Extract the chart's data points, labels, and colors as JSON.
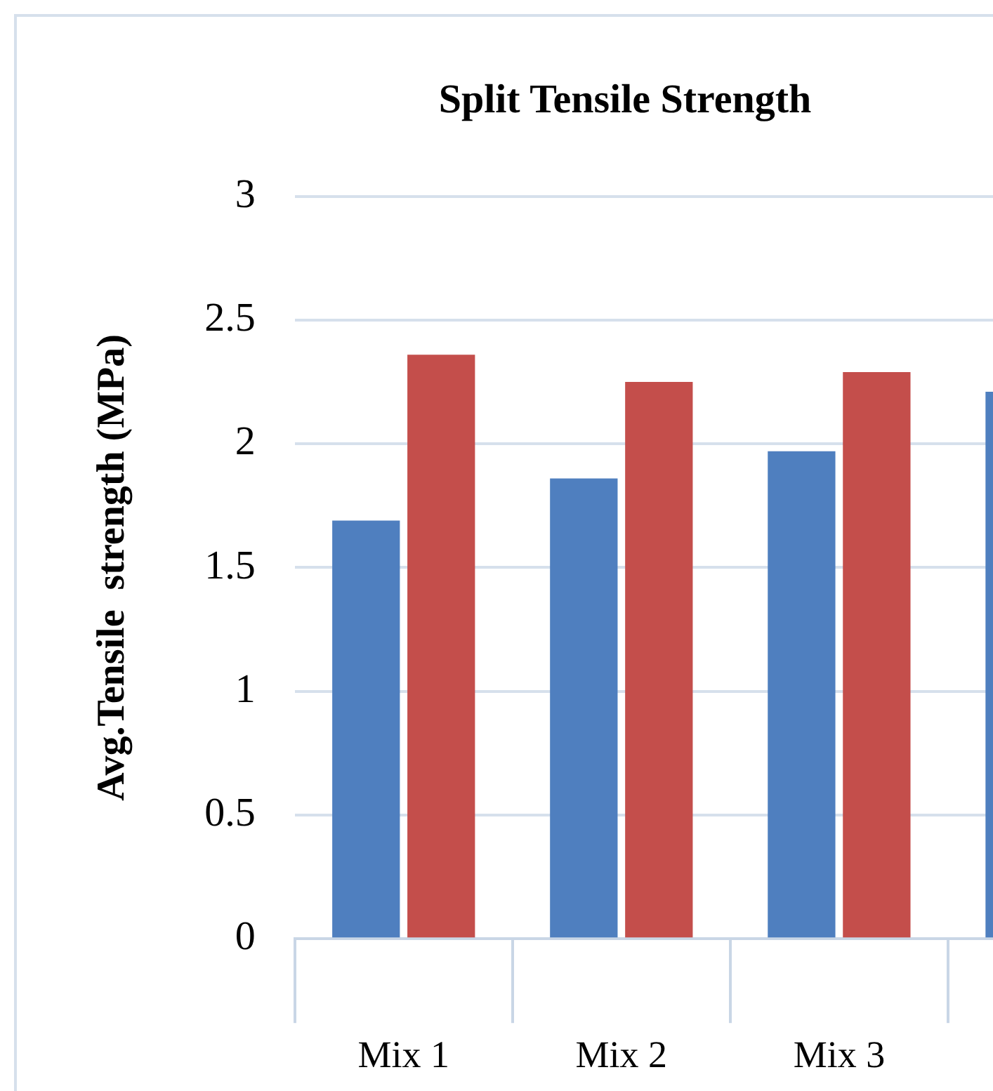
{
  "chart_data": {
    "type": "bar",
    "title": "Split Tensile Strength",
    "ylabel": "Avg.Tensile  strength (MPa)",
    "categories": [
      "Mix 1",
      "Mix 2",
      "Mix 3",
      null
    ],
    "series": [
      {
        "color": "#4f7fbf",
        "values": [
          1.69,
          1.86,
          1.97,
          2.21
        ]
      },
      {
        "color": "#c44e4b",
        "values": [
          2.36,
          2.25,
          2.29,
          null
        ]
      }
    ],
    "ylim": [
      0,
      3
    ],
    "yticks": [
      0,
      0.5,
      1,
      1.5,
      2,
      2.5,
      3
    ],
    "grid": "y",
    "legend": false
  }
}
